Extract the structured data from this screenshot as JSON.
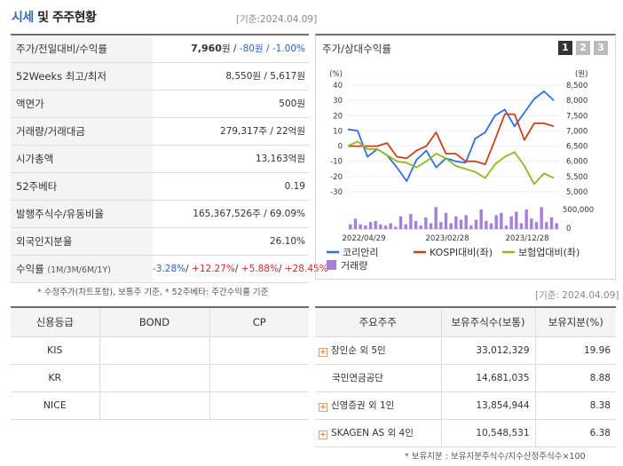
{
  "header": {
    "title_a": "시세",
    "title_b": "및 주주현황",
    "date": "[기준:2024.04.09]"
  },
  "info": [
    {
      "label": "주가/전일대비/수익률",
      "value_parts": [
        {
          "t": "7,960",
          "c": "b"
        },
        {
          "t": "원 / ",
          "c": ""
        },
        {
          "t": "-80",
          "c": "neg"
        },
        {
          "t": "원 / ",
          "c": "neg"
        },
        {
          "t": "-1.00%",
          "c": "neg"
        }
      ]
    },
    {
      "label": "52Weeks 최고/최저",
      "value_parts": [
        {
          "t": "8,550원 / 5,617원",
          "c": ""
        }
      ]
    },
    {
      "label": "액면가",
      "value_parts": [
        {
          "t": "500원",
          "c": ""
        }
      ]
    },
    {
      "label": "거래량/거래대금",
      "value_parts": [
        {
          "t": "279,317주 / 22억원",
          "c": ""
        }
      ]
    },
    {
      "label": "시가총액",
      "value_parts": [
        {
          "t": "13,163억원",
          "c": ""
        }
      ]
    },
    {
      "label": "52주베타",
      "value_parts": [
        {
          "t": "0.19",
          "c": ""
        }
      ]
    },
    {
      "label": "발행주식수/유동비율",
      "value_parts": [
        {
          "t": "165,367,526주 / 69.09%",
          "c": ""
        }
      ]
    },
    {
      "label": "외국인지분율",
      "value_parts": [
        {
          "t": "26.10%",
          "c": ""
        }
      ]
    },
    {
      "label": "수익률",
      "label_sub": "(1M/3M/6M/1Y)",
      "value_parts": [
        {
          "t": "-3.28%",
          "c": "neg"
        },
        {
          "t": "/ ",
          "c": ""
        },
        {
          "t": "+12.27%",
          "c": "pos"
        },
        {
          "t": "/ ",
          "c": ""
        },
        {
          "t": "+5.88%",
          "c": "pos"
        },
        {
          "t": "/ ",
          "c": ""
        },
        {
          "t": "+28.45%",
          "c": "pos"
        }
      ]
    }
  ],
  "note": "* 수정주가(차트포함), 보통주 기준, * 52주베타: 주간수익률 기준",
  "chart_panel": {
    "title": "주가/상대수익률",
    "buttons": [
      "1",
      "2",
      "3"
    ],
    "active_button": 0
  },
  "chart_data": {
    "type": "line",
    "left_axis": {
      "unit": "(%)",
      "ticks": [
        "40",
        "30",
        "20",
        "10",
        "0",
        "-10",
        "-20",
        "-30"
      ],
      "ylim": [
        -30,
        40
      ]
    },
    "right_axis": {
      "unit": "(원)",
      "ticks": [
        "8,500",
        "8,000",
        "7,500",
        "7,000",
        "6,500",
        "6,000",
        "5,500",
        "5,000"
      ],
      "ylim": [
        5000,
        8500
      ]
    },
    "volume_axis": {
      "ticks": [
        "500,000",
        "0"
      ]
    },
    "x_ticks": [
      "2022/04/29",
      "2023/02/28",
      "2023/12/28"
    ],
    "series": [
      {
        "name": "코리안리",
        "color": "#2f6fdc",
        "values": [
          11,
          10,
          -7,
          -2,
          -6,
          -14,
          -23,
          -9,
          -3,
          -14,
          -8,
          -10,
          -11,
          5,
          9,
          20,
          24,
          13,
          22,
          31,
          36,
          30
        ]
      },
      {
        "name": "KOSPI대비(좌)",
        "color": "#c8401e",
        "values": [
          0,
          0,
          0,
          0,
          2,
          -7,
          -8,
          -3,
          0,
          9,
          -5,
          -5,
          -10,
          -10,
          -12,
          4,
          21,
          21,
          4,
          15,
          15,
          13
        ]
      },
      {
        "name": "보험업대비(좌)",
        "color": "#8fb820",
        "values": [
          0,
          3,
          -2,
          -2,
          -6,
          -10,
          -11,
          -14,
          -10,
          -5,
          -8,
          -13,
          -15,
          -17,
          -21,
          -12,
          -7,
          -4,
          -13,
          -25,
          -18,
          -21
        ]
      }
    ],
    "volume": {
      "name": "거래량",
      "color": "#a57fd8",
      "values": [
        0.2,
        0.45,
        0.2,
        0.15,
        0.3,
        0.35,
        0.2,
        0.15,
        0.25,
        0.1,
        0.55,
        0.2,
        0.65,
        0.35,
        0.15,
        0.5,
        0.25,
        0.95,
        0.3,
        0.7,
        0.25,
        0.55,
        0.4,
        0.6,
        0.15,
        0.4,
        0.85,
        0.35,
        0.25,
        0.6,
        0.7,
        0.15,
        0.55,
        0.75,
        0.25,
        0.85,
        0.45,
        0.3,
        0.95,
        0.3,
        0.5,
        0.25
      ]
    }
  },
  "chart_date": "[기준: 2024.04.09]",
  "credit": {
    "headers": [
      "신용등급",
      "BOND",
      "CP"
    ],
    "rows": [
      [
        "KIS",
        "",
        ""
      ],
      [
        "KR",
        "",
        ""
      ],
      [
        "NICE",
        "",
        ""
      ]
    ]
  },
  "holders": {
    "headers": [
      "주요주주",
      "보유주식수(보통)",
      "보유지분(%)"
    ],
    "rows": [
      {
        "name": "장인순 외 5인",
        "shares": "33,012,329",
        "pct": "19.96",
        "expand": true
      },
      {
        "name": "국민연금공단",
        "shares": "14,681,035",
        "pct": "8.88",
        "expand": false
      },
      {
        "name": "신영증권 외 1인",
        "shares": "13,854,944",
        "pct": "8.38",
        "expand": true
      },
      {
        "name": "SKAGEN AS 외 4인",
        "shares": "10,548,531",
        "pct": "6.38",
        "expand": true
      }
    ]
  },
  "footnote": "* 보유지분 : 보유지분주식수/지수산정주식수×100"
}
